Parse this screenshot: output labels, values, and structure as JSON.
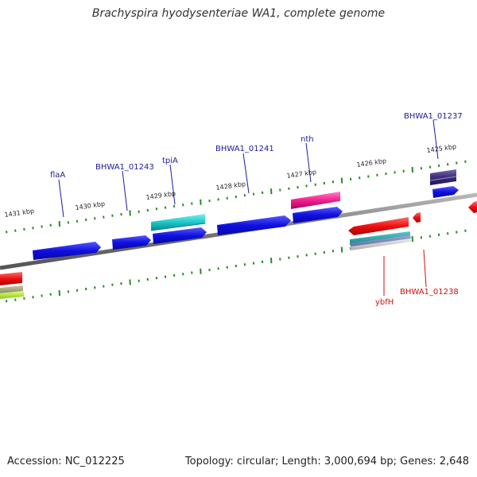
{
  "title": "Brachyspira hyodysenteriae WA1, complete genome",
  "footer": {
    "accession": "Accession: NC_012225",
    "summary": "Topology: circular; Length: 3,000,694 bp; Genes: 2,648"
  },
  "colors": {
    "forward_gene": "#1010dd",
    "reverse_gene": "#ee1111",
    "forward_label": "#1a1aa0",
    "reverse_label": "#cc1111",
    "tick": "#2a8a2a",
    "backbone": "#777777"
  },
  "scale_labels": [
    "1431 kbp",
    "1430 kbp",
    "1429 kbp",
    "1428 kbp",
    "1427 kbp",
    "1426 kbp",
    "1425 kbp"
  ],
  "gene_labels": {
    "flaA": "flaA",
    "bhwa1243": "BHWA1_01243",
    "tpiA": "tpiA",
    "bhwa1241": "BHWA1_01241",
    "nth": "nth",
    "bhwa1237": "BHWA1_01237",
    "ybfH": "ybfH",
    "bhwa1238": "BHWA1_01238"
  }
}
